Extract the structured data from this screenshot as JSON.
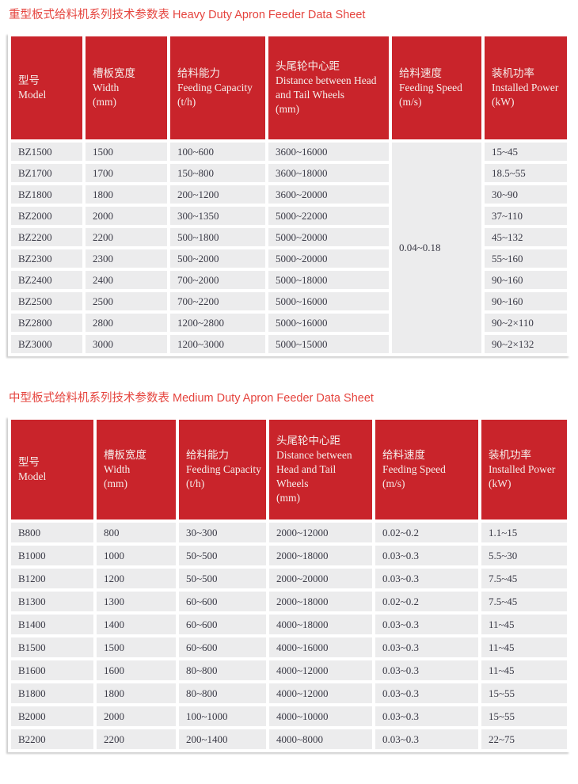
{
  "colors": {
    "header_bg": "#C9242B",
    "header_text": "#F5EDEA",
    "title_color": "#E5443E",
    "row_bg": "#ECECED",
    "cell_text": "#3A3A46"
  },
  "tables": [
    {
      "title_zh": "重型板式给料机系列技术参数表",
      "title_en": "Heavy Duty Apron Feeder Data Sheet",
      "columns": [
        {
          "zh": "型号",
          "en": "Model",
          "unit": ""
        },
        {
          "zh": "槽板宽度",
          "en": "Width",
          "unit": "(mm)"
        },
        {
          "zh": "给料能力",
          "en": "Feeding Capacity",
          "unit": "(t/h)"
        },
        {
          "zh": "头尾轮中心距",
          "en": "Distance between Head and Tail Wheels",
          "unit": "(mm)"
        },
        {
          "zh": "给料速度",
          "en": "Feeding Speed",
          "unit": "(m/s)"
        },
        {
          "zh": "装机功率",
          "en": "Installed Power",
          "unit": "(kW)"
        }
      ],
      "merged_speed": "0.04~0.18",
      "rows": [
        [
          "BZ1500",
          "1500",
          "100~600",
          "3600~16000",
          "15~45"
        ],
        [
          "BZ1700",
          "1700",
          "150~800",
          "3600~18000",
          "18.5~55"
        ],
        [
          "BZ1800",
          "1800",
          "200~1200",
          "3600~20000",
          "30~90"
        ],
        [
          "BZ2000",
          "2000",
          "300~1350",
          "5000~22000",
          "37~110"
        ],
        [
          "BZ2200",
          "2200",
          "500~1800",
          "5000~20000",
          "45~132"
        ],
        [
          "BZ2300",
          "2300",
          "500~2000",
          "5000~20000",
          "55~160"
        ],
        [
          "BZ2400",
          "2400",
          "700~2000",
          "5000~18000",
          "90~160"
        ],
        [
          "BZ2500",
          "2500",
          "700~2200",
          "5000~16000",
          "90~160"
        ],
        [
          "BZ2800",
          "2800",
          "1200~2800",
          "5000~16000",
          "90~2×110"
        ],
        [
          "BZ3000",
          "3000",
          "1200~3000",
          "5000~15000",
          "90~2×132"
        ]
      ]
    },
    {
      "title_zh": "中型板式给料机系列技术参数表",
      "title_en": "Medium Duty Apron Feeder Data Sheet",
      "columns": [
        {
          "zh": "型号",
          "en": "Model",
          "unit": ""
        },
        {
          "zh": "槽板宽度",
          "en": "Width",
          "unit": "(mm)"
        },
        {
          "zh": "给料能力",
          "en": "Feeding Capacity",
          "unit": "(t/h)"
        },
        {
          "zh": "头尾轮中心距",
          "en": "Distance between Head and Tail Wheels",
          "unit": "(mm)"
        },
        {
          "zh": "给料速度",
          "en": "Feeding Speed",
          "unit": "(m/s)"
        },
        {
          "zh": "装机功率",
          "en": "Installed Power",
          "unit": "(kW)"
        }
      ],
      "merged_speed": null,
      "rows": [
        [
          "B800",
          "800",
          "30~300",
          "2000~12000",
          "0.02~0.2",
          "1.1~15"
        ],
        [
          "B1000",
          "1000",
          "50~500",
          "2000~18000",
          "0.03~0.3",
          "5.5~30"
        ],
        [
          "B1200",
          "1200",
          "50~500",
          "2000~20000",
          "0.03~0.3",
          "7.5~45"
        ],
        [
          "B1300",
          "1300",
          "60~600",
          "2000~18000",
          "0.02~0.2",
          "7.5~45"
        ],
        [
          "B1400",
          "1400",
          "60~600",
          "4000~18000",
          "0.03~0.3",
          "11~45"
        ],
        [
          "B1500",
          "1500",
          "60~600",
          "4000~16000",
          "0.03~0.3",
          "11~45"
        ],
        [
          "B1600",
          "1600",
          "80~800",
          "4000~12000",
          "0.03~0.3",
          "11~45"
        ],
        [
          "B1800",
          "1800",
          "80~800",
          "4000~12000",
          "0.03~0.3",
          "15~55"
        ],
        [
          "B2000",
          "2000",
          "100~1000",
          "4000~10000",
          "0.03~0.3",
          "15~55"
        ],
        [
          "B2200",
          "2200",
          "200~1400",
          "4000~8000",
          "0.03~0.3",
          "22~75"
        ]
      ]
    }
  ]
}
